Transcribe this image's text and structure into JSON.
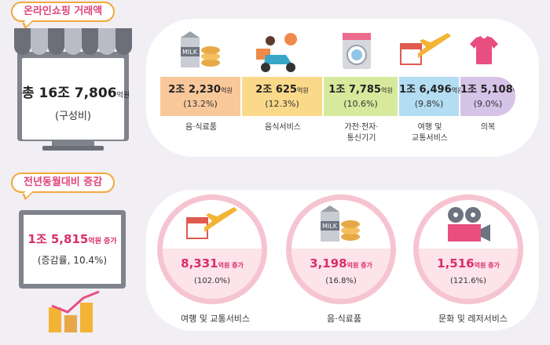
{
  "top": {
    "label": "온라인쇼핑 거래액",
    "total_main": "총 16조 7,806",
    "total_unit": "억원",
    "total_sub": "(구성비)",
    "segments": [
      {
        "amount": "2조 2,230",
        "unit": "억원",
        "pct": "(13.2%)",
        "label": "음·식료품",
        "color": "#f8c79a",
        "icon": "milk-food-icon"
      },
      {
        "amount": "2조 625",
        "unit": "억원",
        "pct": "(12.3%)",
        "label": "음식서비스",
        "color": "#fbd98a",
        "icon": "delivery-scooter-icon"
      },
      {
        "amount": "1조 7,785",
        "unit": "억원",
        "pct": "(10.6%)",
        "label": "가전·전자·\n통신기기",
        "color": "#d7e99c",
        "icon": "washing-machine-icon"
      },
      {
        "amount": "1조 6,496",
        "unit": "억원",
        "pct": "(9.8%)",
        "label": "여행 및\n교통서비스",
        "color": "#b3ddf2",
        "icon": "airplane-calendar-icon"
      },
      {
        "amount": "1조 5,108",
        "unit": "억원",
        "pct": "(9.0%)",
        "label": "의복",
        "color": "#d6c3e8",
        "icon": "tshirt-icon"
      }
    ]
  },
  "bottom": {
    "label": "전년동월대비 증감",
    "inc_main": "1조 5,815",
    "inc_unit": "억원 증가",
    "inc_sub": "(증감률, 10.4%)",
    "items": [
      {
        "value": "8,331",
        "unit": "억원 증가",
        "pct": "(102.0%)",
        "label": "여행 및 교통서비스",
        "icon": "airplane-calendar-icon"
      },
      {
        "value": "3,198",
        "unit": "억원 증가",
        "pct": "(16.8%)",
        "label": "음·식료품",
        "icon": "milk-food-icon"
      },
      {
        "value": "1,516",
        "unit": "억원 증가",
        "pct": "(121.6%)",
        "label": "문화 및 레저서비스",
        "icon": "film-projector-icon"
      }
    ]
  }
}
